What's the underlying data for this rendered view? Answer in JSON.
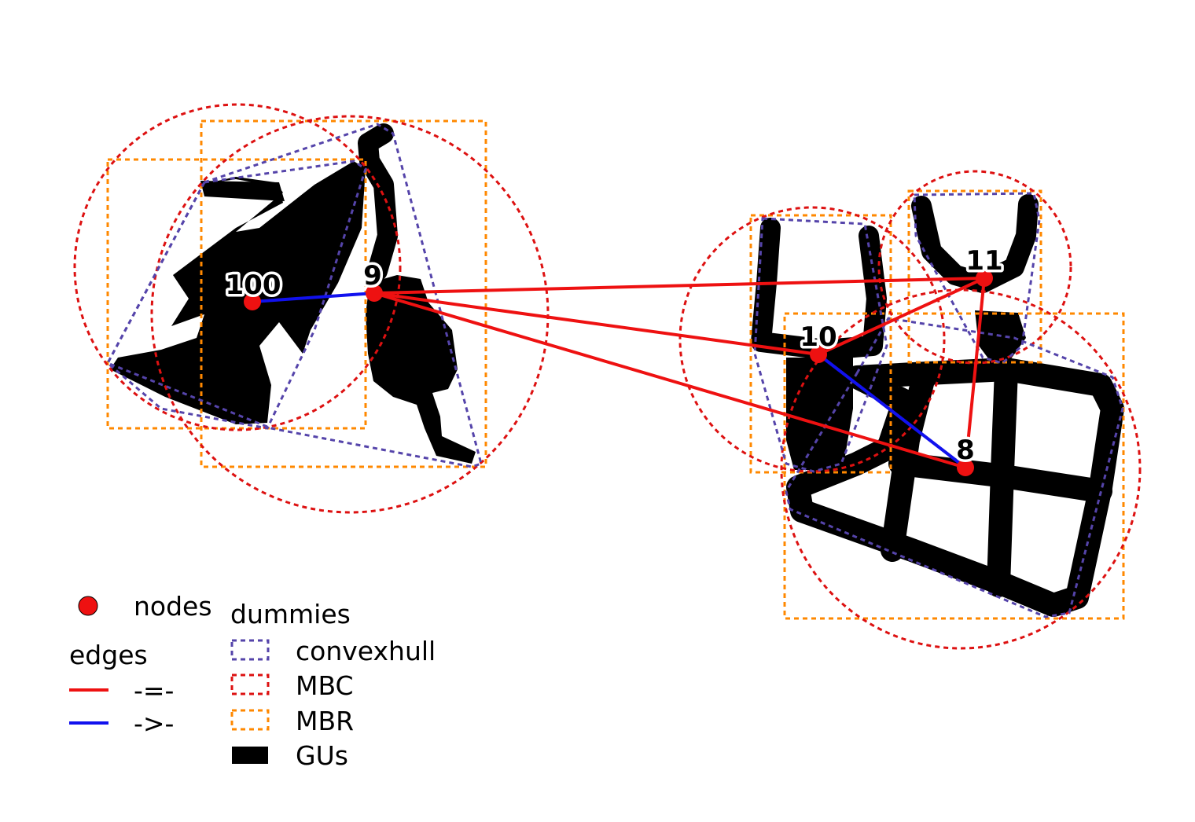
{
  "nodes": [
    {
      "id": "100",
      "label": "100"
    },
    {
      "id": "9",
      "label": "9"
    },
    {
      "id": "10",
      "label": "10"
    },
    {
      "id": "11",
      "label": "11"
    },
    {
      "id": "8",
      "label": "8"
    }
  ],
  "edges": [
    {
      "from": "100",
      "to": "9",
      "type": "->-"
    },
    {
      "from": "9",
      "to": "11",
      "type": "-=-"
    },
    {
      "from": "9",
      "to": "10",
      "type": "-=-"
    },
    {
      "from": "9",
      "to": "8",
      "type": "-=-"
    },
    {
      "from": "10",
      "to": "11",
      "type": "-=-"
    },
    {
      "from": "10",
      "to": "8",
      "type": "->-"
    },
    {
      "from": "11",
      "to": "8",
      "type": "-=-"
    }
  ],
  "legend": {
    "nodes_label": "nodes",
    "edges_title": "edges",
    "edge_equal_label": "-=-",
    "edge_directed_label": "->-",
    "dummies_title": "dummies",
    "convexhull_label": "convexhull",
    "mbc_label": "MBC",
    "mbr_label": "MBR",
    "gus_label": "GUs"
  },
  "colors": {
    "node": "#ee1111",
    "edge_equal": "#ee1111",
    "edge_directed": "#1111ee",
    "convexhull": "#5544aa",
    "mbc": "#dd1111",
    "mbr": "#ff8800",
    "gus": "#000000"
  }
}
